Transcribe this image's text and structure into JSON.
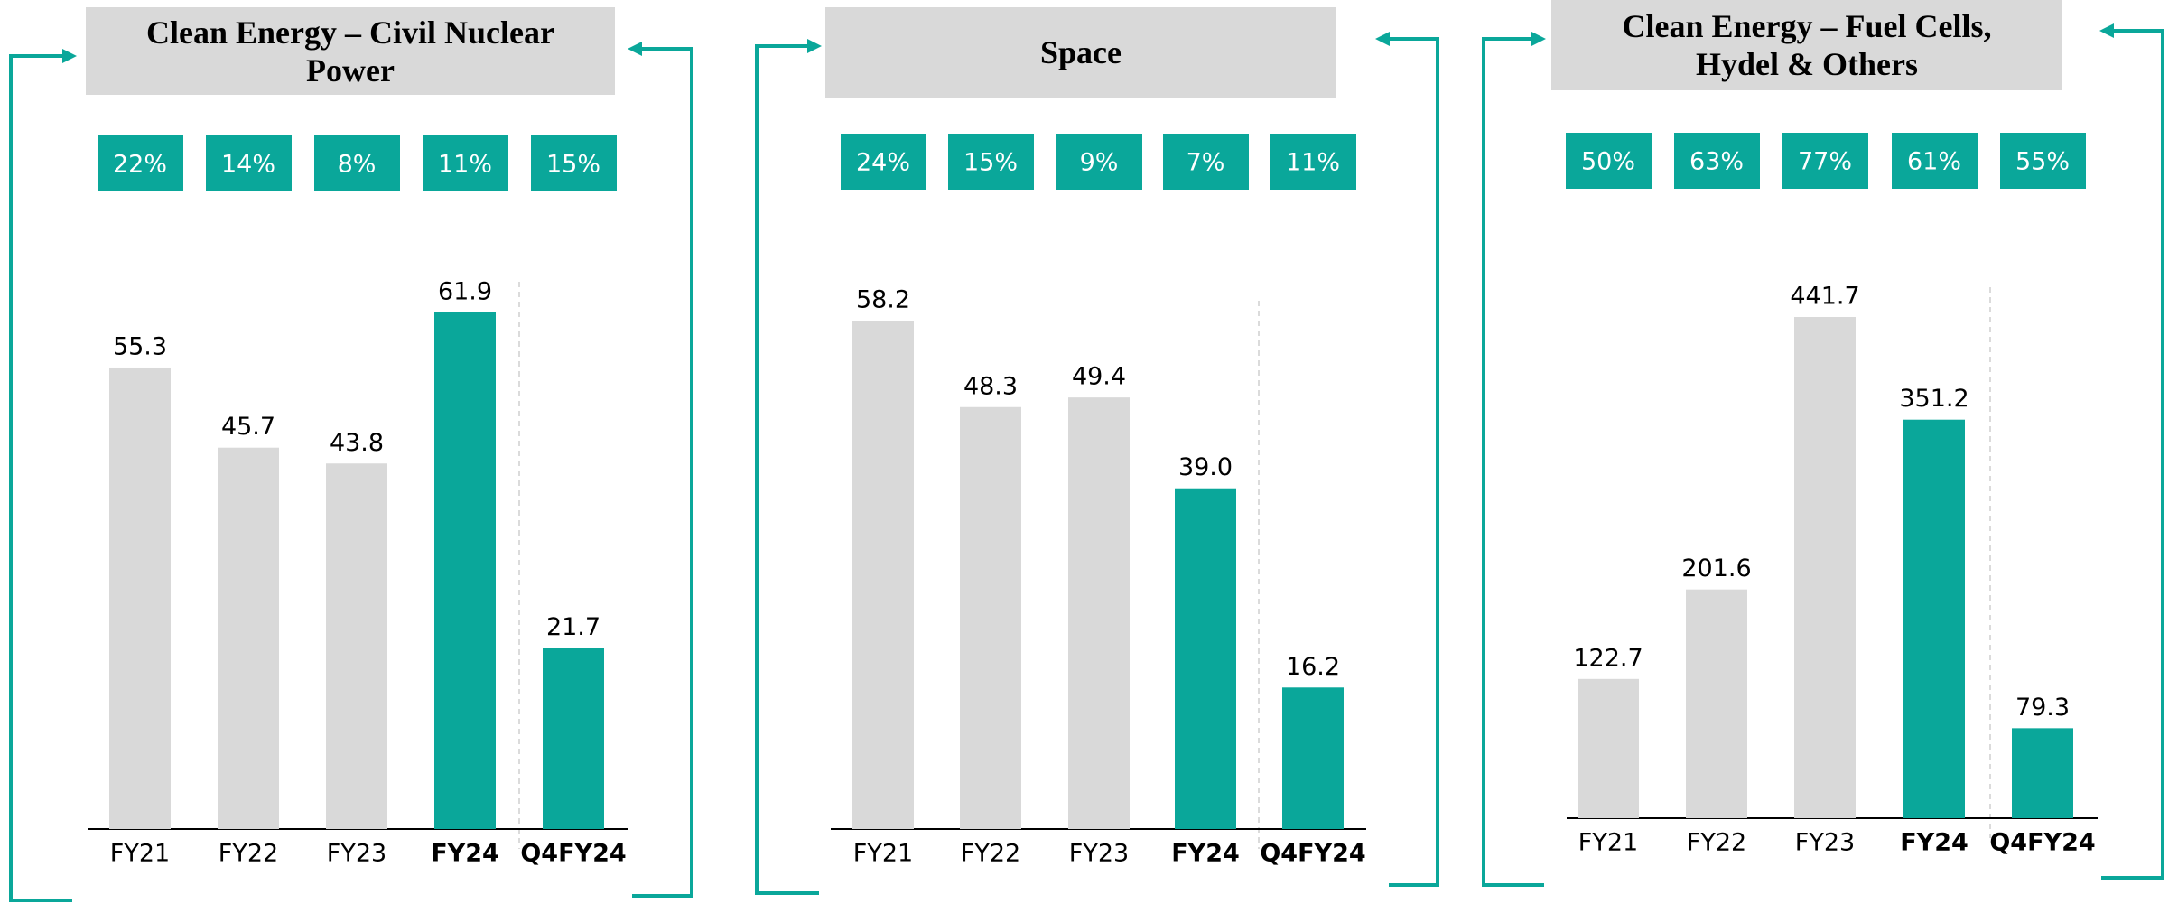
{
  "chart_data": [
    {
      "type": "bar",
      "title": "Clean Energy – Civil Nuclear Power",
      "percent_labels": [
        "22%",
        "14%",
        "8%",
        "11%",
        "15%"
      ],
      "categories": [
        "FY21",
        "FY22",
        "FY23",
        "FY24",
        "Q4FY24"
      ],
      "values": [
        55.3,
        45.7,
        43.8,
        61.9,
        21.7
      ],
      "value_labels": [
        "55.3",
        "45.7",
        "43.8",
        "61.9",
        "21.7"
      ],
      "color": "#d9d9d9",
      "highlight_color": "#0aa79a",
      "highlight": [
        false,
        false,
        false,
        true,
        true
      ]
    },
    {
      "type": "bar",
      "title": "Space",
      "percent_labels": [
        "24%",
        "15%",
        "9%",
        "7%",
        "11%"
      ],
      "categories": [
        "FY21",
        "FY22",
        "FY23",
        "FY24",
        "Q4FY24"
      ],
      "values": [
        58.2,
        48.3,
        49.4,
        39.0,
        16.2
      ],
      "value_labels": [
        "58.2",
        "48.3",
        "49.4",
        "39.0",
        "16.2"
      ],
      "color": "#d9d9d9",
      "highlight_color": "#0aa79a",
      "highlight": [
        false,
        false,
        false,
        true,
        true
      ]
    },
    {
      "type": "bar",
      "title": "Clean Energy – Fuel Cells, Hydel & Others",
      "percent_labels": [
        "50%",
        "63%",
        "77%",
        "61%",
        "55%"
      ],
      "categories": [
        "FY21",
        "FY22",
        "FY23",
        "FY24",
        "Q4FY24"
      ],
      "values": [
        122.7,
        201.6,
        441.7,
        351.2,
        79.3
      ],
      "value_labels": [
        "122.7",
        "201.6",
        "441.7",
        "351.2",
        "79.3"
      ],
      "color": "#d9d9d9",
      "highlight_color": "#0aa79a",
      "highlight": [
        false,
        false,
        false,
        true,
        true
      ]
    }
  ]
}
